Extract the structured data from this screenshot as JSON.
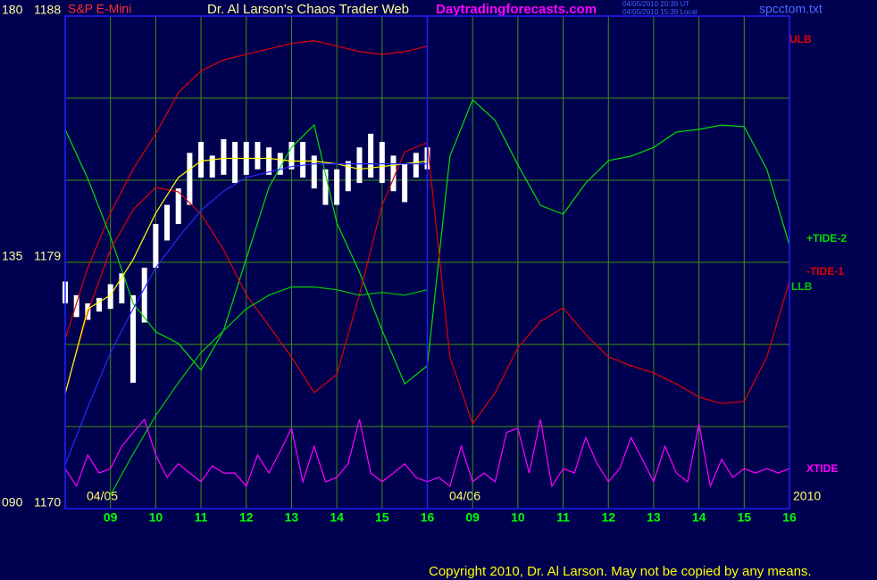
{
  "chart_data": {
    "type": "line",
    "symbol": "S&P E-Mini",
    "title": "Dr. Al Larson's Chaos Trader Web",
    "website": "Daytradingforecasts.com",
    "timestamps": [
      "04/05/2010 20:39 UT",
      "04/05/2010 15:39 Local"
    ],
    "filename": "spcctom.txt",
    "copyright": "Copyright 2010, Dr. Al Larson. May not be copied by any means.",
    "date_labels": [
      "04/05",
      "04/06",
      "2010"
    ],
    "xlim": [
      0,
      16
    ],
    "xticks": [
      {
        "value": 1,
        "label": "09"
      },
      {
        "value": 2,
        "label": "10"
      },
      {
        "value": 3,
        "label": "11"
      },
      {
        "value": 4,
        "label": "12"
      },
      {
        "value": 5,
        "label": "13"
      },
      {
        "value": 6,
        "label": "14"
      },
      {
        "value": 7,
        "label": "15"
      },
      {
        "value": 8,
        "label": "16"
      },
      {
        "value": 9,
        "label": "09"
      },
      {
        "value": 10,
        "label": "10"
      },
      {
        "value": 11,
        "label": "11"
      },
      {
        "value": 12,
        "label": "12"
      },
      {
        "value": 13,
        "label": "13"
      },
      {
        "value": 14,
        "label": "14"
      },
      {
        "value": 15,
        "label": "15"
      },
      {
        "value": 16,
        "label": "16"
      }
    ],
    "session_break": 8,
    "ylim": [
      1170,
      1188
    ],
    "yticks": [
      1170,
      1179,
      1188
    ],
    "ygrid": [
      1173,
      1176,
      1182,
      1185
    ],
    "y2lim": [
      90,
      180
    ],
    "y2ticks": [
      {
        "value": 90,
        "label": "090"
      },
      135,
      180
    ],
    "grid": true,
    "x": [
      0,
      0.5,
      1,
      1.5,
      2,
      2.5,
      3,
      3.5,
      4,
      4.5,
      5,
      5.5,
      6,
      6.5,
      7,
      7.5,
      8,
      8.5,
      9,
      9.5,
      10,
      10.5,
      11,
      11.5,
      12,
      12.5,
      13,
      13.5,
      14,
      14.5,
      15,
      15.5,
      16
    ],
    "series": [
      {
        "name": "ULB",
        "color": "#e00000",
        "values": [
          1176.2,
          1178.8,
          1180.8,
          1182.4,
          1183.7,
          1185.2,
          1186.0,
          1186.4,
          1186.6,
          1186.8,
          1187.0,
          1187.1,
          1186.9,
          1186.7,
          1186.6,
          1186.7,
          1186.9,
          null,
          null,
          null,
          null,
          null,
          null,
          null,
          null,
          null,
          null,
          null,
          null,
          null,
          null,
          null,
          null
        ]
      },
      {
        "name": "+TIDE-2",
        "color": "#00e000",
        "axis": "y2",
        "values": [
          159.3,
          150.3,
          139.7,
          127.5,
          122.3,
          120.2,
          115.3,
          122.6,
          135.7,
          148.7,
          156.0,
          160.1,
          142.2,
          133.2,
          122.6,
          112.8,
          116.1,
          154.4,
          164.7,
          160.9,
          152.8,
          145.4,
          143.8,
          149.5,
          153.6,
          154.4,
          156.0,
          158.8,
          159.3,
          160.1,
          159.8,
          152.0,
          138.1
        ]
      },
      {
        "name": "-TIDE-1",
        "color": "#e00000",
        "axis": "y2",
        "values": [
          111.2,
          125.9,
          137.3,
          144.6,
          148.7,
          147.9,
          143.8,
          137.3,
          129.1,
          123.4,
          117.7,
          111.2,
          114.5,
          129.1,
          145.4,
          155.2,
          156.9,
          117.7,
          105.5,
          111.2,
          119.4,
          124.2,
          126.7,
          121.8,
          117.7,
          116.1,
          114.8,
          112.8,
          110.4,
          109.2,
          109.6,
          117.7,
          131.6
        ]
      },
      {
        "name": "LLB",
        "color": "#00cc00",
        "values": [
          null,
          null,
          1170.5,
          1172.0,
          1173.4,
          1174.6,
          1175.7,
          1176.5,
          1177.3,
          1177.8,
          1178.1,
          1178.1,
          1178.0,
          1177.8,
          1177.9,
          1177.8,
          1178.0,
          null,
          null,
          null,
          null,
          null,
          null,
          null,
          null,
          null,
          null,
          null,
          null,
          null,
          null,
          null,
          null
        ]
      },
      {
        "name": "XTIDE",
        "color": "#ff00ff",
        "axis": "y2",
        "x": [
          0,
          0.25,
          0.5,
          0.75,
          1,
          1.25,
          1.5,
          1.75,
          2,
          2.25,
          2.5,
          2.75,
          3,
          3.25,
          3.5,
          3.75,
          4,
          4.25,
          4.5,
          4.75,
          5,
          5.25,
          5.5,
          5.75,
          6,
          6.25,
          6.5,
          6.75,
          7,
          7.25,
          7.5,
          7.75,
          8,
          8.25,
          8.5,
          8.75,
          9,
          9.25,
          9.5,
          9.75,
          10,
          10.25,
          10.5,
          10.75,
          11,
          11.25,
          11.5,
          11.75,
          12,
          12.25,
          12.5,
          12.75,
          13,
          13.25,
          13.5,
          13.75,
          14,
          14.25,
          14.5,
          14.75,
          15,
          15.25,
          15.5,
          15.75,
          16
        ],
        "values": [
          97.3,
          94.1,
          99.8,
          96.5,
          97.3,
          101.4,
          103.9,
          106.3,
          99.8,
          95.7,
          98.2,
          96.5,
          94.9,
          97.8,
          96.5,
          96.5,
          94.1,
          99.8,
          96.5,
          100.5,
          104.7,
          94.9,
          101.4,
          94.9,
          95.7,
          98.2,
          106.3,
          96.5,
          94.9,
          96.5,
          98.2,
          95.7,
          94.9,
          95.7,
          94.1,
          101.4,
          94.9,
          96.5,
          94.9,
          103.9,
          104.7,
          96.5,
          106.3,
          94.1,
          97.3,
          96.5,
          103.0,
          98.2,
          94.9,
          97.3,
          103.0,
          99.0,
          94.9,
          101.4,
          96.5,
          94.9,
          105.5,
          94.1,
          99.0,
          95.7,
          97.3,
          96.5,
          97.3,
          96.5,
          97.3
        ]
      },
      {
        "color": "#ffff00",
        "values": [
          1174.2,
          1177.3,
          1177.8,
          1179.1,
          1180.8,
          1182.1,
          1182.7,
          1182.8,
          1182.8,
          1182.8,
          1182.7,
          1182.7,
          1182.6,
          1182.4,
          1182.5,
          1182.6,
          1182.7,
          null,
          null,
          null,
          null,
          null,
          null,
          null,
          null,
          null,
          null,
          null,
          null,
          null,
          null,
          null,
          null
        ]
      },
      {
        "color": "#2828ff",
        "values": [
          1171.6,
          1173.7,
          1175.7,
          1177.3,
          1178.8,
          1179.9,
          1180.9,
          1181.6,
          1182.1,
          1182.3,
          1182.5,
          1182.6,
          1182.6,
          1182.6,
          1182.6,
          1182.6,
          1182.6,
          null,
          null,
          null,
          null,
          null,
          null,
          null,
          null,
          null,
          null,
          null,
          null,
          null,
          null,
          null,
          null
        ]
      }
    ],
    "bars": {
      "color": "#ffffff",
      "x": [
        0,
        0.25,
        0.5,
        0.75,
        1,
        1.25,
        1.5,
        1.75,
        2,
        2.25,
        2.5,
        2.75,
        3,
        3.25,
        3.5,
        3.75,
        4,
        4.25,
        4.5,
        4.75,
        5,
        5.25,
        5.5,
        5.75,
        6,
        6.25,
        6.5,
        6.75,
        7,
        7.25,
        7.5,
        7.75,
        8
      ],
      "high": [
        1178.3,
        1177.8,
        1177.5,
        1177.7,
        1178.2,
        1178.6,
        1177.8,
        1178.8,
        1180.4,
        1181.1,
        1181.7,
        1183.0,
        1183.4,
        1182.9,
        1183.5,
        1183.4,
        1183.4,
        1183.4,
        1183.2,
        1183.0,
        1183.4,
        1183.4,
        1182.9,
        1182.4,
        1182.4,
        1182.7,
        1183.2,
        1183.7,
        1183.4,
        1182.9,
        1182.6,
        1183.0,
        1183.2
      ],
      "low": [
        1177.5,
        1177.0,
        1176.9,
        1177.2,
        1177.3,
        1177.5,
        1174.6,
        1176.8,
        1178.8,
        1179.8,
        1180.4,
        1181.1,
        1182.1,
        1182.1,
        1182.2,
        1181.9,
        1182.2,
        1182.4,
        1182.2,
        1182.2,
        1182.4,
        1182.1,
        1181.7,
        1181.1,
        1181.1,
        1181.6,
        1181.9,
        1182.1,
        1181.9,
        1181.6,
        1181.2,
        1182.1,
        1182.4
      ]
    }
  }
}
